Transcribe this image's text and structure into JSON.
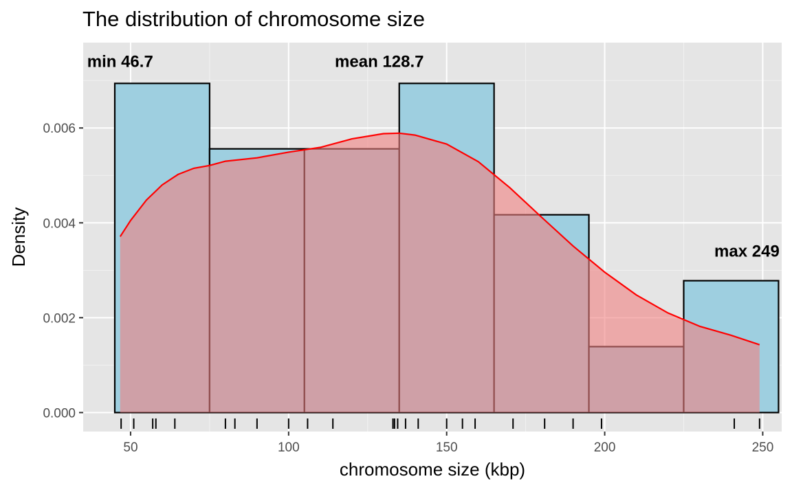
{
  "chart_data": {
    "type": "histogram",
    "title": "The distribution of chromosome size",
    "xlabel": "chromosome size (kbp)",
    "ylabel": "Density",
    "xlim": [
      35,
      256
    ],
    "ylim": [
      -0.0004,
      0.0078
    ],
    "x_ticks": [
      50,
      100,
      150,
      200,
      250
    ],
    "y_ticks": [
      0,
      0.002,
      0.004,
      0.006
    ],
    "x_tick_labels": [
      "50",
      "100",
      "150",
      "200",
      "250"
    ],
    "y_tick_labels": [
      "0.000",
      "0.002",
      "0.004",
      "0.006"
    ],
    "grid": true,
    "panel_background": "#e5e5e5",
    "histogram": {
      "fill": "#9ecfe0",
      "border": "#000000",
      "bins": [
        {
          "start": 45,
          "end": 75,
          "density": 0.00694
        },
        {
          "start": 75,
          "end": 105,
          "density": 0.00556
        },
        {
          "start": 105,
          "end": 135,
          "density": 0.00556
        },
        {
          "start": 135,
          "end": 165,
          "density": 0.00694
        },
        {
          "start": 165,
          "end": 195,
          "density": 0.00417
        },
        {
          "start": 195,
          "end": 225,
          "density": 0.00139
        },
        {
          "start": 225,
          "end": 255,
          "density": 0.00278
        }
      ]
    },
    "density_curve": {
      "color": "#ff0000",
      "fill": "#f08080",
      "x": [
        46.7,
        50,
        55,
        60,
        65,
        70,
        75,
        80,
        90,
        100,
        110,
        120,
        130,
        135,
        140,
        150,
        160,
        170,
        180,
        190,
        200,
        210,
        220,
        230,
        240,
        249
      ],
      "y": [
        0.00371,
        0.00405,
        0.00448,
        0.0048,
        0.00502,
        0.00515,
        0.00521,
        0.0053,
        0.00537,
        0.00549,
        0.00559,
        0.00577,
        0.00588,
        0.00589,
        0.00585,
        0.00566,
        0.00529,
        0.00474,
        0.00412,
        0.00351,
        0.00296,
        0.00248,
        0.0021,
        0.00182,
        0.00163,
        0.00143
      ]
    },
    "rug": [
      47,
      51,
      57,
      58,
      64,
      80,
      83,
      90,
      100,
      106,
      114,
      133,
      133.5,
      134.5,
      137,
      141,
      150,
      155,
      159,
      171,
      181,
      190,
      199,
      241,
      249
    ],
    "annotations": [
      {
        "text": "min 46.7",
        "x": 46.7,
        "y": 0.0074
      },
      {
        "text": "mean 128.7",
        "x": 128.7,
        "y": 0.0074
      },
      {
        "text": "max 249",
        "x": 245,
        "y": 0.0034
      }
    ]
  }
}
